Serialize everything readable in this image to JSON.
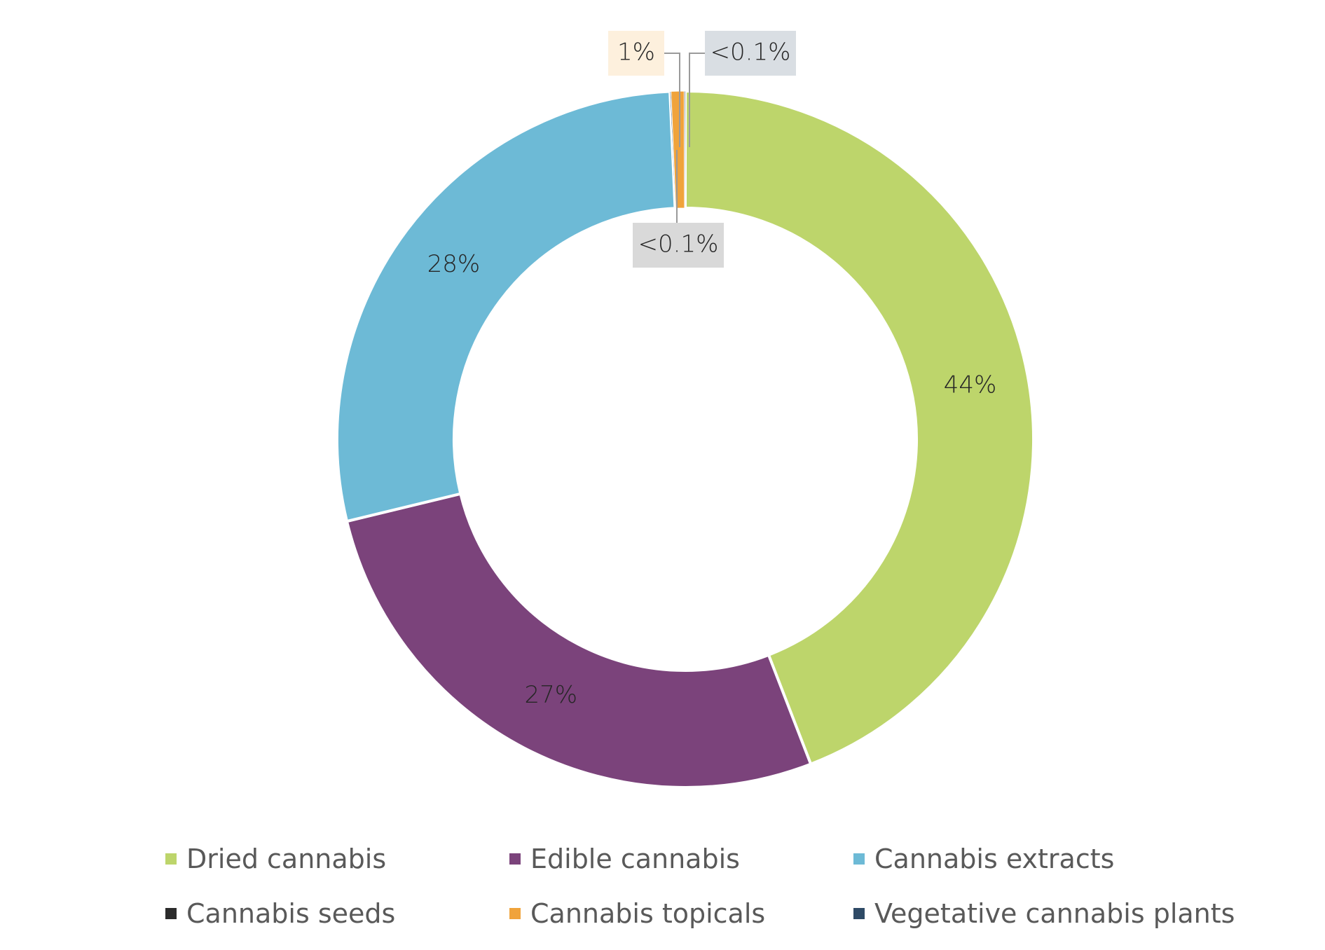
{
  "chart_data": {
    "type": "pie",
    "donut": true,
    "categories": [
      "Dried cannabis",
      "Edible cannabis",
      "Cannabis extracts",
      "Cannabis seeds",
      "Cannabis topicals",
      "Vegetative cannabis plants"
    ],
    "values": [
      44,
      27,
      28,
      0.05,
      0.6,
      0.05
    ],
    "labels": [
      "44%",
      "27%",
      "28%",
      "<0.1%",
      "1%",
      "<0.1%"
    ],
    "colors": [
      "#BDD56B",
      "#7B437B",
      "#6DBAD6",
      "#2B2B2B",
      "#F0A33B",
      "#2E4A66"
    ],
    "legend_position": "bottom",
    "title": ""
  }
}
